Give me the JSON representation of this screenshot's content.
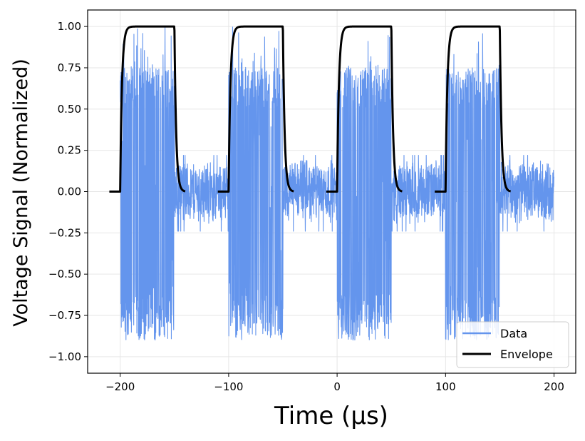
{
  "chart_data": {
    "type": "line",
    "xlabel": "Time (μs)",
    "ylabel": "Voltage Signal (Normalized)",
    "xlim": [
      -230,
      220
    ],
    "ylim": [
      -1.1,
      1.1
    ],
    "grid": true,
    "x_ticks": [
      -200,
      -100,
      0,
      100,
      200
    ],
    "x_tick_labels": [
      "−200",
      "−100",
      "0",
      "100",
      "200"
    ],
    "y_ticks": [
      1.0,
      0.75,
      0.5,
      0.25,
      0.0,
      -0.25,
      -0.5,
      -0.75,
      -1.0
    ],
    "y_tick_labels": [
      "1.00",
      "0.75",
      "0.50",
      "0.25",
      "0.00",
      "−0.25",
      "−0.50",
      "−0.75",
      "−1.00"
    ],
    "legend_position": "bottom-right",
    "series": [
      {
        "name": "Data",
        "color": "#6495ED",
        "style": "noisy-signal",
        "x_range": [
          -200,
          200
        ],
        "burst_starts": [
          -200,
          -100,
          0,
          100
        ],
        "burst_duration": 50,
        "burst_amplitude": [
          -0.9,
          1.0
        ],
        "baseline_noise_range": [
          -0.2,
          0.2
        ]
      },
      {
        "name": "Envelope",
        "color": "#000000",
        "style": "step-envelope",
        "segments": [
          {
            "x_start": -210,
            "rise": -200,
            "fall": -150,
            "x_end": -140
          },
          {
            "x_start": -110,
            "rise": -100,
            "fall": -50,
            "x_end": -40
          },
          {
            "x_start": -10,
            "rise": 0,
            "fall": 50,
            "x_end": 60
          },
          {
            "x_start": 90,
            "rise": 100,
            "fall": 150,
            "x_end": 160
          }
        ],
        "low": 0.0,
        "high": 1.0
      }
    ]
  }
}
